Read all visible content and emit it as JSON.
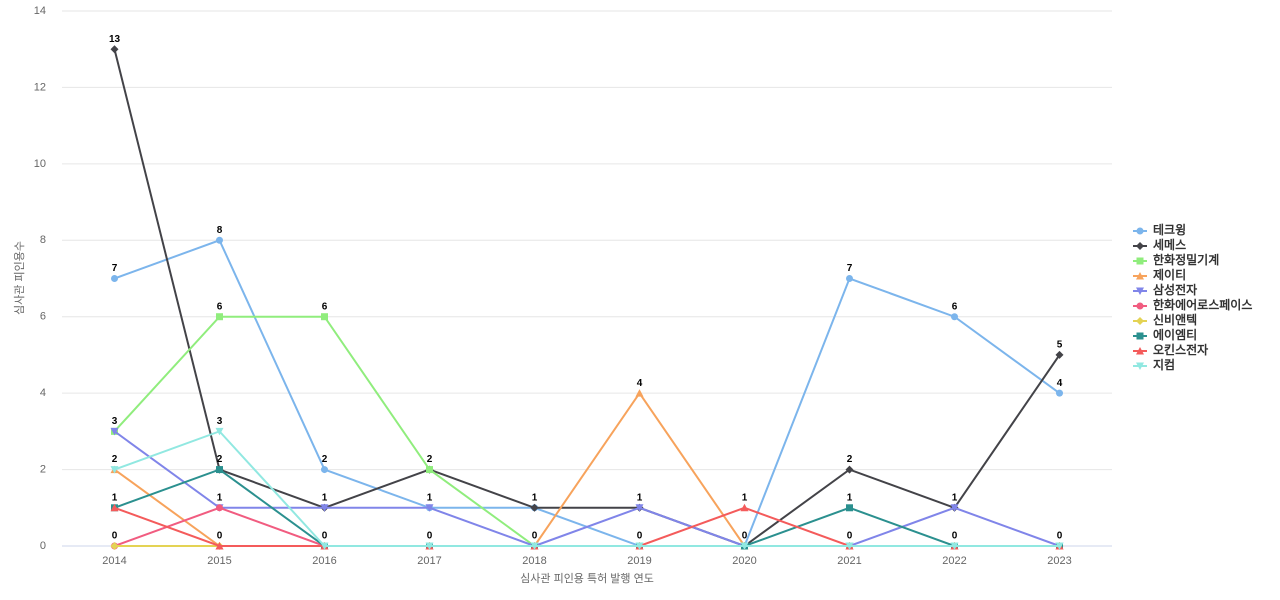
{
  "chart_data": {
    "type": "line",
    "x_label": "심사관 피인용 특허 발행 연도",
    "y_label": "심사관 피인용수",
    "categories": [
      "2014",
      "2015",
      "2016",
      "2017",
      "2018",
      "2019",
      "2020",
      "2021",
      "2022",
      "2023"
    ],
    "ylim": [
      0,
      14
    ],
    "yticks": [
      0,
      2,
      4,
      6,
      8,
      10,
      12,
      14
    ],
    "grid": true,
    "legend": "right",
    "series": [
      {
        "name": "테크윙",
        "color": "#7cb5ec",
        "marker": "circle",
        "values": [
          7,
          8,
          2,
          1,
          1,
          0,
          0,
          7,
          6,
          4
        ]
      },
      {
        "name": "세메스",
        "color": "#434348",
        "marker": "diamond",
        "values": [
          13,
          2,
          1,
          2,
          1,
          1,
          0,
          2,
          1,
          5
        ]
      },
      {
        "name": "한화정밀기계",
        "color": "#90ed7d",
        "marker": "square",
        "values": [
          3,
          6,
          6,
          2,
          0,
          0,
          0,
          0,
          0,
          0
        ]
      },
      {
        "name": "제이티",
        "color": "#f7a35c",
        "marker": "triangle",
        "values": [
          2,
          0,
          0,
          0,
          0,
          4,
          0,
          0,
          0,
          0
        ]
      },
      {
        "name": "삼성전자",
        "color": "#8085e9",
        "marker": "triangle-down",
        "values": [
          3,
          1,
          1,
          1,
          0,
          1,
          0,
          0,
          1,
          0
        ]
      },
      {
        "name": "한화에어로스페이스",
        "color": "#f15c80",
        "marker": "circle",
        "values": [
          0,
          1,
          0,
          0,
          0,
          0,
          0,
          0,
          0,
          0
        ]
      },
      {
        "name": "신비앤텍",
        "color": "#e4d354",
        "marker": "diamond",
        "values": [
          0,
          0,
          0,
          0,
          0,
          0,
          0,
          0,
          0,
          0
        ]
      },
      {
        "name": "에이엠티",
        "color": "#2b908f",
        "marker": "square",
        "values": [
          1,
          2,
          0,
          0,
          0,
          0,
          0,
          1,
          0,
          0
        ]
      },
      {
        "name": "오킨스전자",
        "color": "#f45b5b",
        "marker": "triangle",
        "values": [
          1,
          0,
          0,
          0,
          0,
          0,
          1,
          0,
          0,
          0
        ]
      },
      {
        "name": "지컴",
        "color": "#91e8e1",
        "marker": "triangle-down",
        "values": [
          2,
          3,
          0,
          0,
          0,
          0,
          0,
          0,
          0,
          0
        ]
      }
    ]
  }
}
